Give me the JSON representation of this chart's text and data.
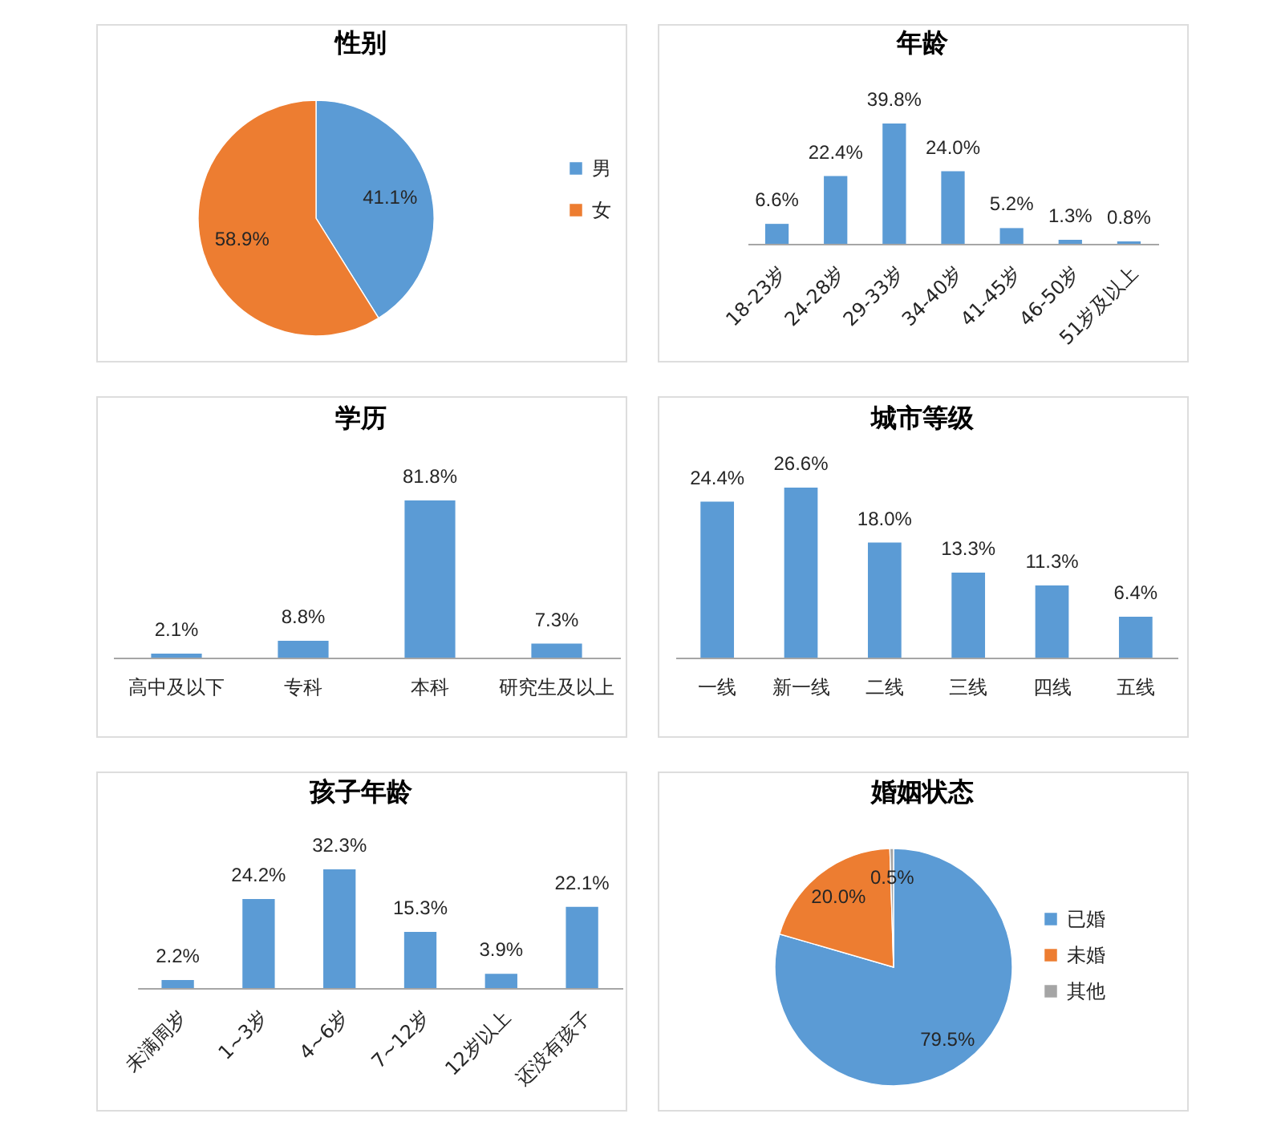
{
  "chart_data": [
    {
      "type": "pie",
      "title": "性别",
      "categories": [
        "男",
        "女"
      ],
      "values": [
        41.1,
        58.9
      ],
      "value_labels": [
        "41.1%",
        "58.9%"
      ],
      "colors": [
        "#5b9bd5",
        "#ed7d31"
      ],
      "legend": "right"
    },
    {
      "type": "bar",
      "title": "年龄",
      "categories": [
        "18-23岁",
        "24-28岁",
        "29-33岁",
        "34-40岁",
        "41-45岁",
        "46-50岁",
        "51岁及以上"
      ],
      "values": [
        6.6,
        22.4,
        39.8,
        24.0,
        5.2,
        1.3,
        0.8
      ],
      "value_labels": [
        "6.6%",
        "22.4%",
        "39.8%",
        "24.0%",
        "5.2%",
        "1.3%",
        "0.8%"
      ],
      "color": "#5b9bd5"
    },
    {
      "type": "bar",
      "title": "学历",
      "categories": [
        "高中及以下",
        "专科",
        "本科",
        "研究生及以上"
      ],
      "values": [
        2.1,
        8.8,
        81.8,
        7.3
      ],
      "value_labels": [
        "2.1%",
        "8.8%",
        "81.8%",
        "7.3%"
      ],
      "color": "#5b9bd5"
    },
    {
      "type": "bar",
      "title": "城市等级",
      "categories": [
        "一线",
        "新一线",
        "二线",
        "三线",
        "四线",
        "五线"
      ],
      "values": [
        24.4,
        26.6,
        18.0,
        13.3,
        11.3,
        6.4
      ],
      "value_labels": [
        "24.4%",
        "26.6%",
        "18.0%",
        "13.3%",
        "11.3%",
        "6.4%"
      ],
      "color": "#5b9bd5"
    },
    {
      "type": "bar",
      "title": "孩子年龄",
      "categories": [
        "未满周岁",
        "1~3岁",
        "4~6岁",
        "7~12岁",
        "12岁以上",
        "还没有孩子"
      ],
      "values": [
        2.2,
        24.2,
        32.3,
        15.3,
        3.9,
        22.1
      ],
      "value_labels": [
        "2.2%",
        "24.2%",
        "32.3%",
        "15.3%",
        "3.9%",
        "22.1%"
      ],
      "color": "#5b9bd5"
    },
    {
      "type": "pie",
      "title": "婚姻状态",
      "categories": [
        "已婚",
        "未婚",
        "其他"
      ],
      "values": [
        79.5,
        20.0,
        0.5
      ],
      "value_labels": [
        "79.5%",
        "20.0%",
        "0.5%"
      ],
      "colors": [
        "#5b9bd5",
        "#ed7d31",
        "#a5a5a5"
      ],
      "legend": "right"
    }
  ]
}
